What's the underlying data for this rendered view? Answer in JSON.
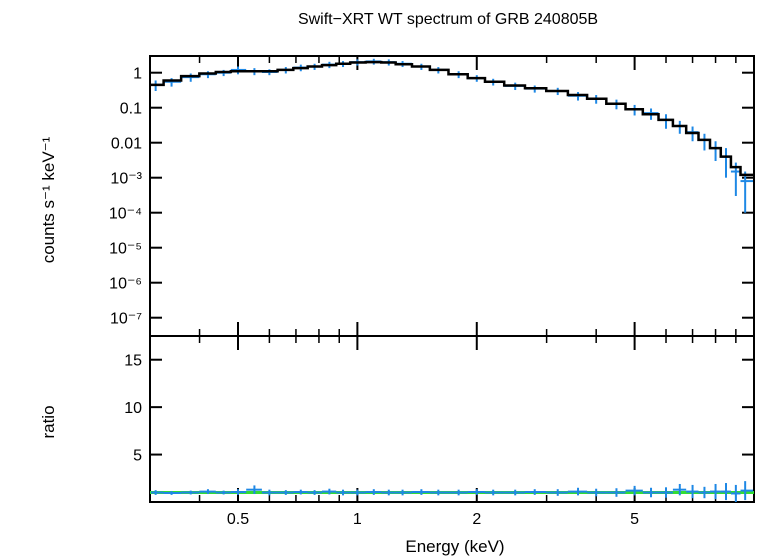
{
  "chart_data": {
    "type": "scatter",
    "title": "Swift−XRT WT spectrum of GRB 240805B",
    "xlabel": "Energy (keV)",
    "xscale": "log",
    "xlim": [
      0.3,
      10
    ],
    "x_ticks": [
      {
        "value": 0.5,
        "label": "0.5"
      },
      {
        "value": 1,
        "label": "1"
      },
      {
        "value": 2,
        "label": "2"
      },
      {
        "value": 5,
        "label": "5"
      }
    ],
    "colors": {
      "data": "#1e88e5",
      "model": "#000000",
      "ratio_one": "#33dd33",
      "frame": "#000000"
    },
    "panels": [
      {
        "name": "spectrum",
        "ylabel": "counts s⁻¹ keV⁻¹",
        "yscale": "log",
        "ylim": [
          3e-08,
          3
        ],
        "y_ticks": [
          {
            "value": 1,
            "label": "1"
          },
          {
            "value": 0.1,
            "label": "0.1"
          },
          {
            "value": 0.01,
            "label": "0.01"
          },
          {
            "value": 0.001,
            "label": "10⁻³"
          },
          {
            "value": 0.0001,
            "label": "10⁻⁴"
          },
          {
            "value": 1e-05,
            "label": "10⁻⁵"
          },
          {
            "value": 1e-06,
            "label": "10⁻⁶"
          },
          {
            "value": 1e-07,
            "label": "10⁻⁷"
          }
        ],
        "series": [
          {
            "role": "data",
            "x": [
              0.31,
              0.34,
              0.38,
              0.42,
              0.46,
              0.5,
              0.55,
              0.6,
              0.66,
              0.72,
              0.78,
              0.85,
              0.92,
              1.0,
              1.1,
              1.2,
              1.3,
              1.45,
              1.6,
              1.8,
              2.0,
              2.2,
              2.5,
              2.8,
              3.2,
              3.6,
              4.0,
              4.5,
              5.0,
              5.5,
              6.0,
              6.5,
              7.0,
              7.5,
              8.0,
              8.5,
              9.0,
              9.5
            ],
            "y": [
              0.45,
              0.55,
              0.75,
              0.9,
              1.0,
              1.2,
              1.1,
              1.05,
              1.2,
              1.4,
              1.5,
              1.7,
              1.8,
              2.0,
              2.1,
              2.0,
              1.8,
              1.5,
              1.2,
              0.9,
              0.7,
              0.55,
              0.42,
              0.35,
              0.3,
              0.22,
              0.18,
              0.13,
              0.09,
              0.07,
              0.045,
              0.03,
              0.02,
              0.012,
              0.007,
              0.004,
              0.0015,
              0.0008
            ],
            "y_err": [
              0.15,
              0.15,
              0.2,
              0.2,
              0.2,
              0.3,
              0.25,
              0.2,
              0.25,
              0.3,
              0.3,
              0.35,
              0.35,
              0.4,
              0.4,
              0.4,
              0.35,
              0.3,
              0.25,
              0.2,
              0.15,
              0.12,
              0.1,
              0.08,
              0.07,
              0.06,
              0.05,
              0.04,
              0.03,
              0.025,
              0.02,
              0.012,
              0.009,
              0.006,
              0.004,
              0.003,
              0.0012,
              0.0007
            ]
          },
          {
            "role": "model",
            "x": [
              0.31,
              0.34,
              0.38,
              0.42,
              0.46,
              0.5,
              0.55,
              0.6,
              0.66,
              0.72,
              0.78,
              0.85,
              0.92,
              1.0,
              1.1,
              1.2,
              1.3,
              1.45,
              1.6,
              1.8,
              2.0,
              2.2,
              2.5,
              2.8,
              3.2,
              3.6,
              4.0,
              4.5,
              5.0,
              5.5,
              6.0,
              6.5,
              7.0,
              7.5,
              8.0,
              8.5,
              9.0,
              9.5
            ],
            "y": [
              0.45,
              0.6,
              0.8,
              0.95,
              1.05,
              1.1,
              1.1,
              1.1,
              1.2,
              1.35,
              1.5,
              1.65,
              1.8,
              1.95,
              2.0,
              1.95,
              1.75,
              1.5,
              1.2,
              0.9,
              0.7,
              0.55,
              0.43,
              0.36,
              0.3,
              0.23,
              0.18,
              0.13,
              0.09,
              0.065,
              0.045,
              0.03,
              0.019,
              0.012,
              0.007,
              0.004,
              0.002,
              0.0012
            ]
          }
        ]
      },
      {
        "name": "ratio",
        "ylabel": "ratio",
        "yscale": "linear",
        "ylim": [
          0,
          17.5
        ],
        "y_ticks": [
          {
            "value": 5,
            "label": "5"
          },
          {
            "value": 10,
            "label": "10"
          },
          {
            "value": 15,
            "label": "15"
          }
        ],
        "reference_line": 1,
        "series": [
          {
            "role": "data",
            "x": [
              0.31,
              0.34,
              0.38,
              0.42,
              0.46,
              0.5,
              0.55,
              0.6,
              0.66,
              0.72,
              0.78,
              0.85,
              0.92,
              1.0,
              1.1,
              1.2,
              1.3,
              1.45,
              1.6,
              1.8,
              2.0,
              2.2,
              2.5,
              2.8,
              3.2,
              3.6,
              4.0,
              4.5,
              5.0,
              5.5,
              6.0,
              6.5,
              7.0,
              7.5,
              8.0,
              8.5,
              9.0,
              9.5
            ],
            "y": [
              1.0,
              0.95,
              1.0,
              1.1,
              1.0,
              1.05,
              1.3,
              1.0,
              1.0,
              1.05,
              1.0,
              1.1,
              1.0,
              1.0,
              1.05,
              1.0,
              1.0,
              1.05,
              1.0,
              1.0,
              1.05,
              1.0,
              1.0,
              1.05,
              1.0,
              1.1,
              1.0,
              1.0,
              1.2,
              1.0,
              1.0,
              1.3,
              1.1,
              1.0,
              1.1,
              1.1,
              0.9,
              1.2
            ],
            "y_err": [
              0.25,
              0.2,
              0.2,
              0.25,
              0.2,
              0.3,
              0.45,
              0.3,
              0.25,
              0.25,
              0.25,
              0.3,
              0.3,
              0.3,
              0.3,
              0.3,
              0.3,
              0.3,
              0.3,
              0.3,
              0.3,
              0.3,
              0.3,
              0.3,
              0.35,
              0.4,
              0.4,
              0.45,
              0.5,
              0.5,
              0.55,
              0.6,
              0.7,
              0.6,
              0.8,
              0.9,
              0.9,
              1.0
            ]
          }
        ]
      }
    ]
  }
}
